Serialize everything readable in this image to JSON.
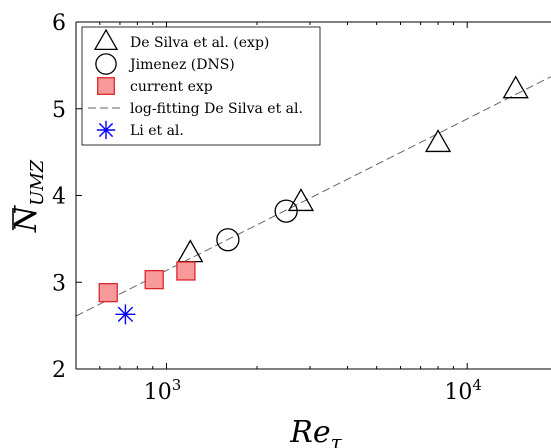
{
  "chart_data": {
    "type": "scatter",
    "xscale": "log",
    "xlim": [
      500,
      19000
    ],
    "ylim": [
      2,
      6
    ],
    "yticks": [
      2,
      3,
      4,
      5,
      6
    ],
    "xticks": [
      1000,
      10000
    ],
    "xtick_labels": [
      {
        "base": "10",
        "exp": "3"
      },
      {
        "base": "10",
        "exp": "4"
      }
    ],
    "ytick_labels": [
      "2",
      "3",
      "4",
      "5",
      "6"
    ],
    "xlabel": {
      "main": "Re",
      "sub": "τ"
    },
    "ylabel": {
      "main": "N",
      "sub": "UMZ"
    },
    "legend_position": "top-left",
    "series": [
      {
        "name": "De Silva et al. (exp)",
        "marker": "triangle",
        "stroke": "#000000",
        "fill": "none",
        "points": [
          [
            1200,
            3.33
          ],
          [
            2800,
            3.92
          ],
          [
            8000,
            4.6
          ],
          [
            14500,
            5.22
          ]
        ]
      },
      {
        "name": "Jimenez (DNS)",
        "marker": "circle",
        "stroke": "#000000",
        "fill": "none",
        "points": [
          [
            1600,
            3.49
          ],
          [
            2500,
            3.82
          ]
        ]
      },
      {
        "name": "current exp",
        "marker": "square",
        "stroke": "#d9262b",
        "fill": "#f99a9a",
        "points": [
          [
            640,
            2.88
          ],
          [
            910,
            3.03
          ],
          [
            1160,
            3.13
          ]
        ]
      },
      {
        "name": "log-fitting De Silva et al.",
        "marker": "dashed-line",
        "stroke": "#666666",
        "points": [
          [
            500,
            2.61
          ],
          [
            19000,
            5.37
          ]
        ]
      },
      {
        "name": "Li et al.",
        "marker": "asterisk",
        "stroke": "#0000ff",
        "points": [
          [
            730,
            2.63
          ]
        ]
      }
    ]
  }
}
